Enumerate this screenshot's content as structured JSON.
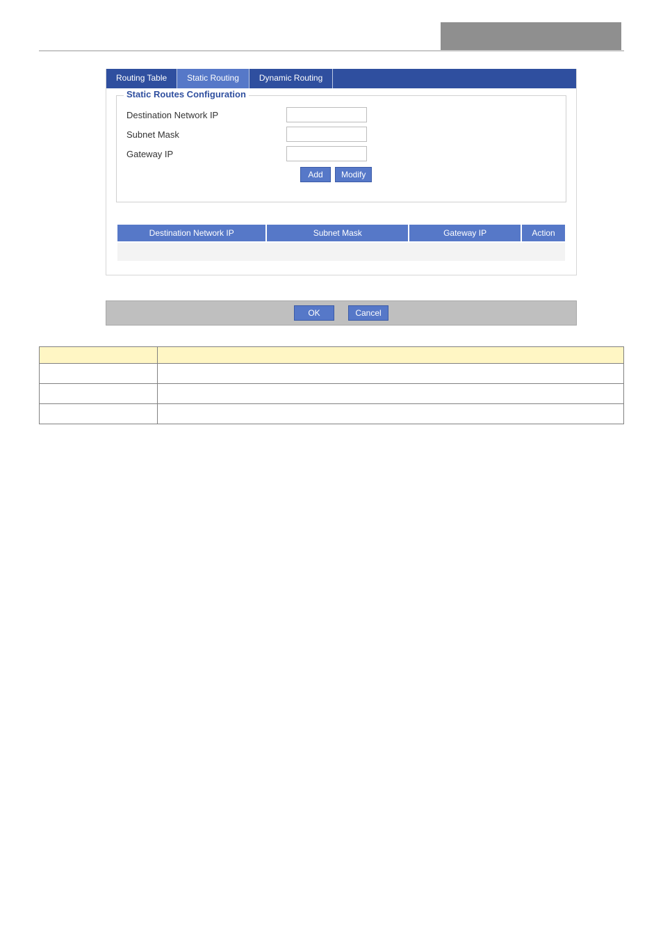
{
  "colors": {
    "tab_bar_bg": "#2f4f9f",
    "tab_active_bg": "#5678c8",
    "tab_text": "#ffffff",
    "legend_text": "#2f4f9f",
    "btn_bg": "#5678c8",
    "btn_border": "#3a5aa6",
    "footer_bg": "#bfbfbf",
    "info_header_bg": "#fff6c4",
    "top_bar_gray": "#8f8f8f"
  },
  "tabs": {
    "routing_table": "Routing Table",
    "static_routing": "Static Routing",
    "dynamic_routing": "Dynamic Routing",
    "active_index": 1
  },
  "form": {
    "legend": "Static Routes Configuration",
    "dest_label": "Destination Network IP",
    "mask_label": "Subnet Mask",
    "gateway_label": "Gateway IP",
    "dest_value": "",
    "mask_value": "",
    "gateway_value": "",
    "add_btn": "Add",
    "modify_btn": "Modify"
  },
  "routes_table": {
    "headers": {
      "dest": "Destination Network IP",
      "mask": "Subnet Mask",
      "gateway": "Gateway IP",
      "action": "Action"
    },
    "rows": []
  },
  "footer": {
    "ok_btn": "OK",
    "cancel_btn": "Cancel"
  },
  "info_table": {
    "header_left": "",
    "header_right": "",
    "rows": [
      {
        "label": "",
        "desc": ""
      },
      {
        "label": "",
        "desc": ""
      },
      {
        "label": "",
        "desc": ""
      }
    ]
  }
}
